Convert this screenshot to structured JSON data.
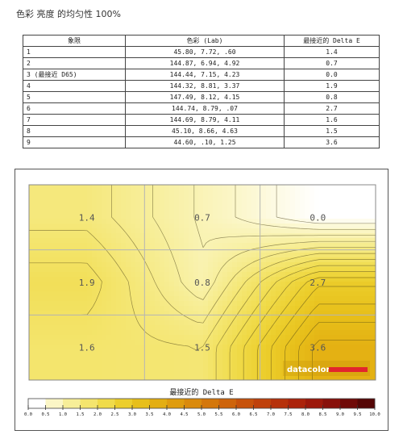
{
  "page_title": "色彩 亮度 的均匀性 100%",
  "table": {
    "headers": [
      "象限",
      "色彩 (Lab)",
      "最接近的 Delta E"
    ],
    "rows": [
      {
        "quadrant": "1",
        "lab": "45.80,   7.72,    .60",
        "delta_e": "1.4"
      },
      {
        "quadrant": "2",
        "lab": "144.87,  6.94,   4.92",
        "delta_e": "0.7"
      },
      {
        "quadrant": "3 (最接近 D65)",
        "lab": "144.44,  7.15,   4.23",
        "delta_e": "0.0"
      },
      {
        "quadrant": "4",
        "lab": "144.32,  8.81,   3.37",
        "delta_e": "1.9"
      },
      {
        "quadrant": "5",
        "lab": "147.49,  8.12,   4.15",
        "delta_e": "0.8"
      },
      {
        "quadrant": "6",
        "lab": "144.74,  8.79,    .07",
        "delta_e": "2.7"
      },
      {
        "quadrant": "7",
        "lab": "144.69,  8.79,   4.11",
        "delta_e": "1.6"
      },
      {
        "quadrant": "8",
        "lab": "45.10,   8.66,   4.63",
        "delta_e": "1.5"
      },
      {
        "quadrant": "9",
        "lab": "44.60,    .10,   1.25",
        "delta_e": "3.6"
      }
    ]
  },
  "chart_data": {
    "type": "heatmap",
    "rows": 3,
    "cols": 3,
    "values": [
      [
        1.4,
        0.7,
        0.0
      ],
      [
        1.9,
        0.8,
        2.7
      ],
      [
        1.6,
        1.5,
        3.6
      ]
    ],
    "cell_labels": [
      [
        "1.4",
        "0.7",
        "0.0"
      ],
      [
        "1.9",
        "0.8",
        "2.7"
      ],
      [
        "1.6",
        "1.5",
        "3.6"
      ]
    ],
    "xlabel": "最接近的 Delta E",
    "colorbar_range": [
      0,
      10
    ],
    "colorbar_ticks": [
      "0.0",
      "0.5",
      "1.0",
      "1.5",
      "2.0",
      "2.5",
      "3.0",
      "3.5",
      "4.0",
      "4.5",
      "5.0",
      "5.5",
      "6.0",
      "6.5",
      "7.0",
      "7.5",
      "8.0",
      "8.5",
      "9.0",
      "9.5",
      "10.0"
    ],
    "colorbar_colors": [
      "#ffffff",
      "#fbf6c6",
      "#f7ee98",
      "#f4e56e",
      "#f0db4a",
      "#ecce2c",
      "#e7bf1a",
      "#e3ae12",
      "#df9c0e",
      "#da8a0c",
      "#d4770b",
      "#ce640b",
      "#c7520b",
      "#bf410b",
      "#b6310b",
      "#ab230b",
      "#9c180b",
      "#88100a",
      "#700a08",
      "#550605"
    ],
    "grid": true,
    "watermark": "datacolor",
    "accent_red": "#e2262c"
  }
}
